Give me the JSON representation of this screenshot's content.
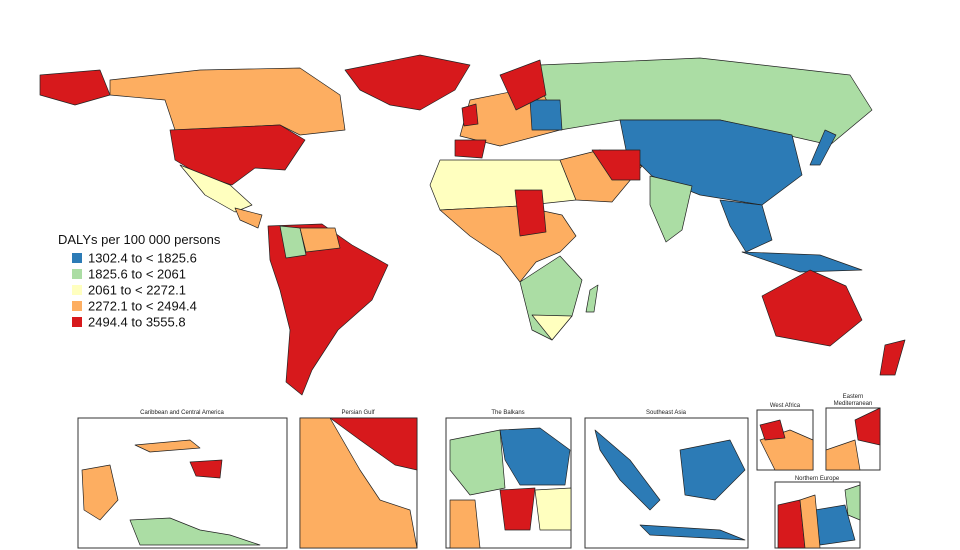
{
  "legend": {
    "title": "DALYs per 100 000 persons",
    "items": [
      {
        "label": "1302.4 to < 1825.6",
        "color": "#2c7bb6"
      },
      {
        "label": "1825.6 to < 2061",
        "color": "#abdda4"
      },
      {
        "label": "2061 to < 2272.1",
        "color": "#ffffbf"
      },
      {
        "label": "2272.1 to < 2494.4",
        "color": "#fdae61"
      },
      {
        "label": "2494.4 to  3555.8",
        "color": "#d7191c"
      }
    ]
  },
  "insets": [
    "Caribbean and Central America",
    "Persian Gulf",
    "The Balkans",
    "Southeast Asia",
    "West Africa",
    "Eastern\nMediterranean",
    "Northern Europe"
  ]
}
